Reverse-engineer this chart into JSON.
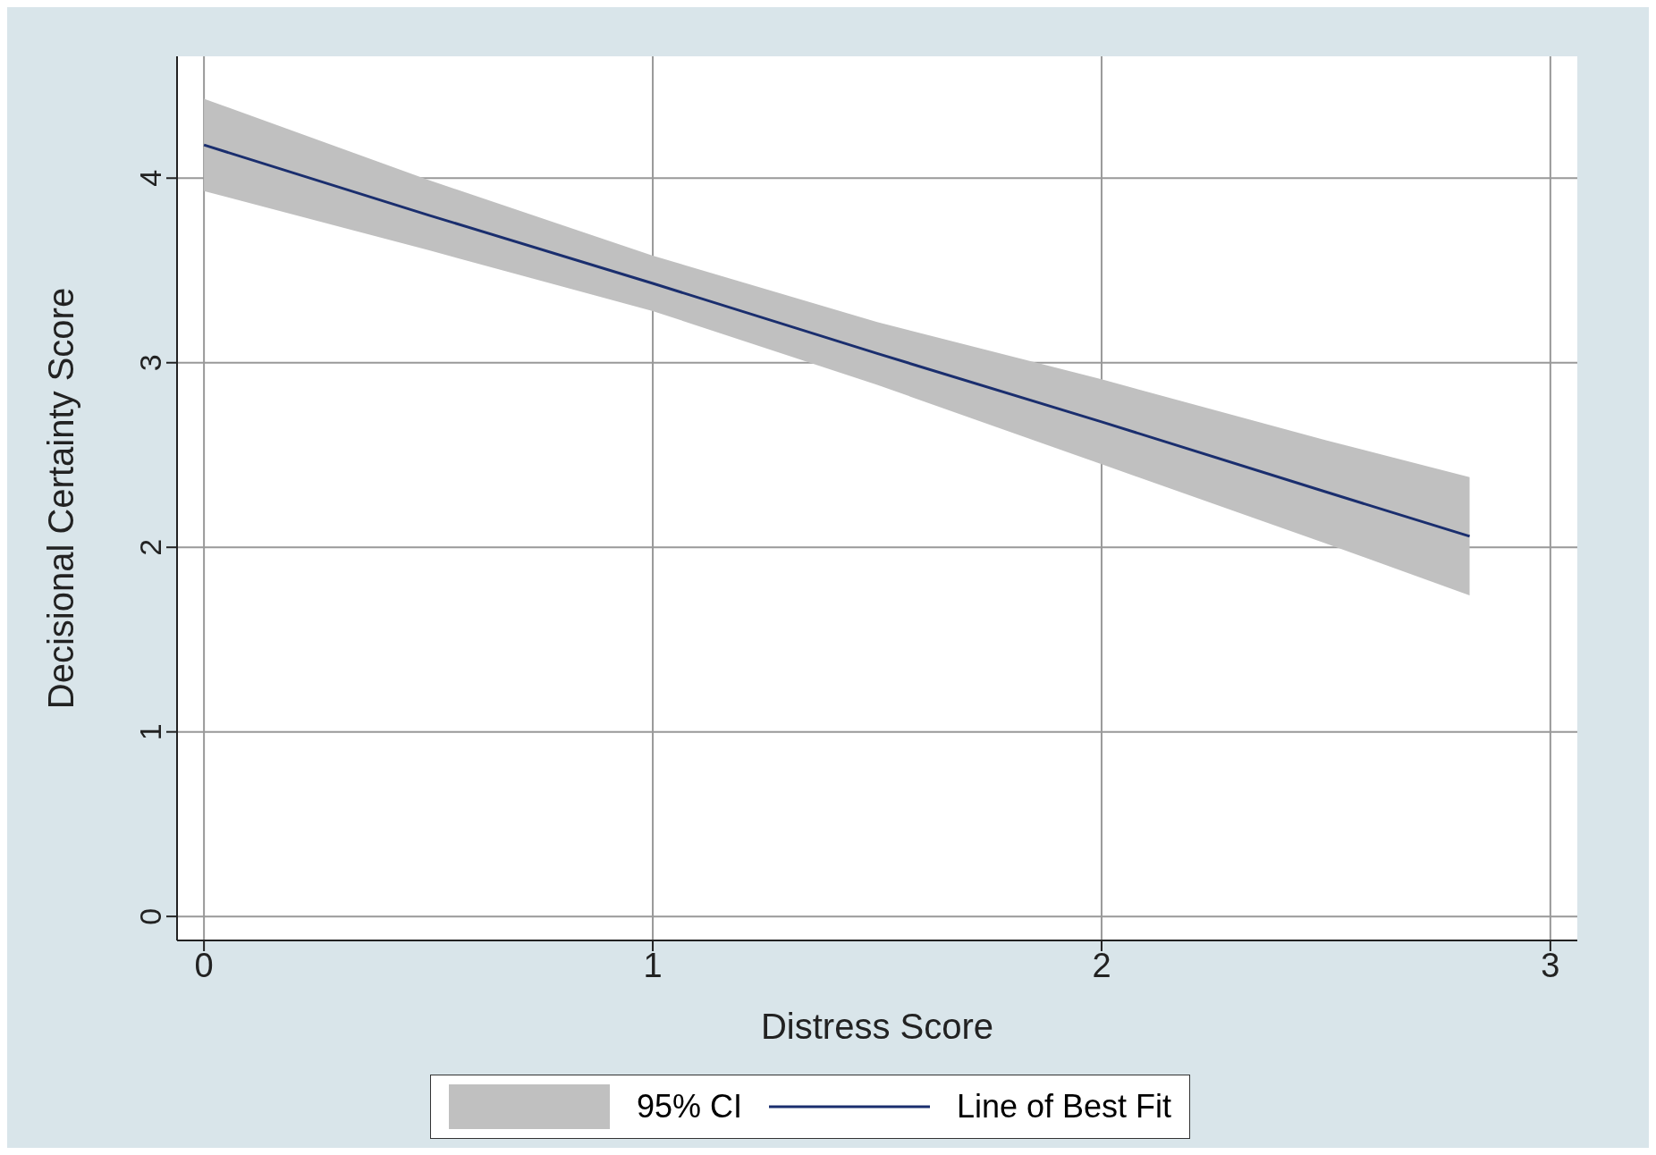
{
  "chart_data": {
    "type": "line",
    "xlabel": "Distress Score",
    "ylabel": "Decisional Certainty Score",
    "x": [
      0,
      0.5,
      1,
      1.5,
      2,
      2.5,
      2.82
    ],
    "series": [
      {
        "name": "Line of Best Fit",
        "color": "#1a2e6e",
        "values": [
          4.18,
          3.8,
          3.43,
          3.05,
          2.68,
          2.3,
          2.06
        ],
        "lower": [
          3.93,
          3.61,
          3.28,
          2.88,
          2.45,
          2.02,
          1.74
        ],
        "upper": [
          4.43,
          3.99,
          3.58,
          3.22,
          2.91,
          2.58,
          2.38
        ]
      }
    ],
    "annotations": [
      "95% CI"
    ],
    "xlim": [
      -0.06,
      3.06
    ],
    "xticks": [
      0,
      1,
      2,
      3
    ],
    "ylim": [
      -0.13,
      4.66
    ],
    "yticks": [
      0,
      1,
      2,
      3,
      4
    ],
    "grid": true,
    "legend": "bottom",
    "marker": "none",
    "line_style": "solid"
  }
}
